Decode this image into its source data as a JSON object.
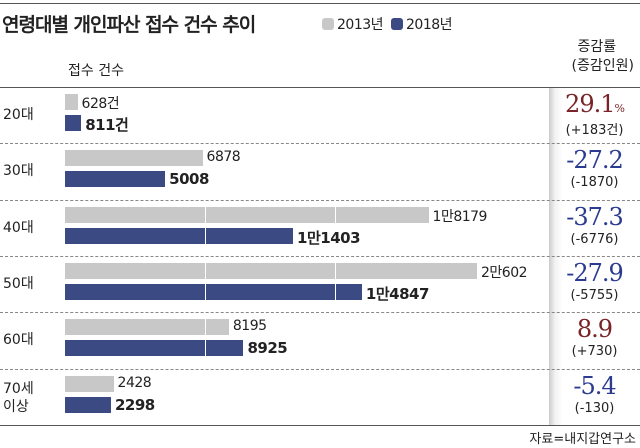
{
  "chart_data": {
    "type": "bar",
    "orientation": "horizontal",
    "title": "연령대별 개인파산 접수 건수 추이",
    "subtitle": "접수 건수",
    "right_header": [
      "증감률",
      "(증감인원)"
    ],
    "categories": [
      "20대",
      "30대",
      "40대",
      "50대",
      "60대",
      "70세 이상"
    ],
    "series": [
      {
        "name": "2013년",
        "color": "#c8c8c8",
        "values": [
          628,
          6878,
          18179,
          20602,
          8195,
          2428
        ],
        "labels": [
          "628건",
          "6878",
          "1만8179",
          "2만602",
          "8195",
          "2428"
        ]
      },
      {
        "name": "2018년",
        "color": "#3b4a82",
        "values": [
          811,
          5008,
          11403,
          14847,
          8925,
          2298
        ],
        "labels": [
          "811건",
          "5008",
          "1만1403",
          "1만4847",
          "8925",
          "2298"
        ]
      }
    ],
    "change_pct": [
      "29.1",
      "-27.2",
      "-37.3",
      "-27.9",
      "8.9",
      "-5.4"
    ],
    "pct_unit": "%",
    "change_count": [
      "(+183건)",
      "(-1870)",
      "(-6776)",
      "(-5755)",
      "(+730)",
      "(-130)"
    ],
    "positive_color": "#7a2428",
    "negative_color": "#2b3b8f",
    "xlim": [
      0,
      20602
    ],
    "source": "자료=내지갑연구소"
  }
}
